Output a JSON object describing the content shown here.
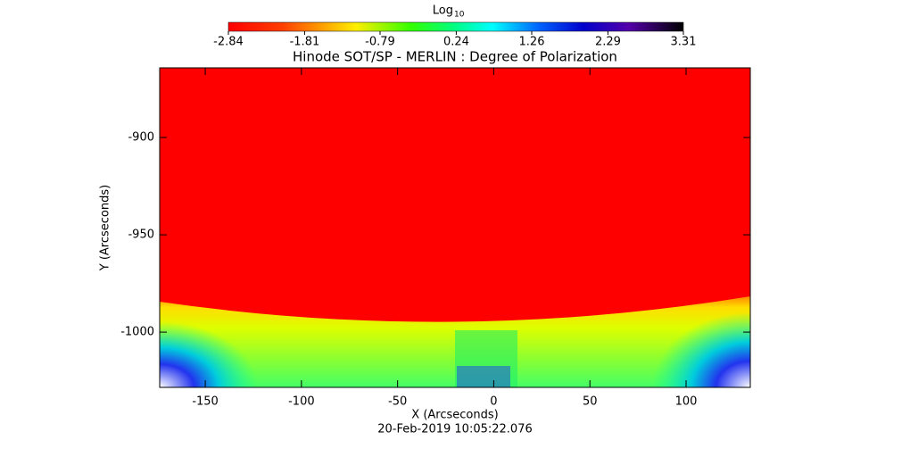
{
  "chart_data": {
    "type": "image",
    "title": "Hinode SOT/SP - MERLIN : Degree of Polarization",
    "x_label": "X (Arcseconds)",
    "y_label": "Y (Arcseconds)",
    "footer": "20-Feb-2019 10:05:22.076",
    "colorbar_label": "Log",
    "colorbar_label_sub": "10",
    "clim": [
      -2.84,
      3.31
    ],
    "cticks": [
      -2.84,
      -1.81,
      -0.79,
      0.24,
      1.26,
      2.29,
      3.31
    ],
    "xlim": [
      -173.7,
      133.4
    ],
    "xticks": [
      -150,
      -100,
      -50,
      0,
      50,
      100
    ],
    "ylim": [
      -1028.4,
      -864.2
    ],
    "yticks": [
      -1000,
      -950,
      -900
    ]
  }
}
